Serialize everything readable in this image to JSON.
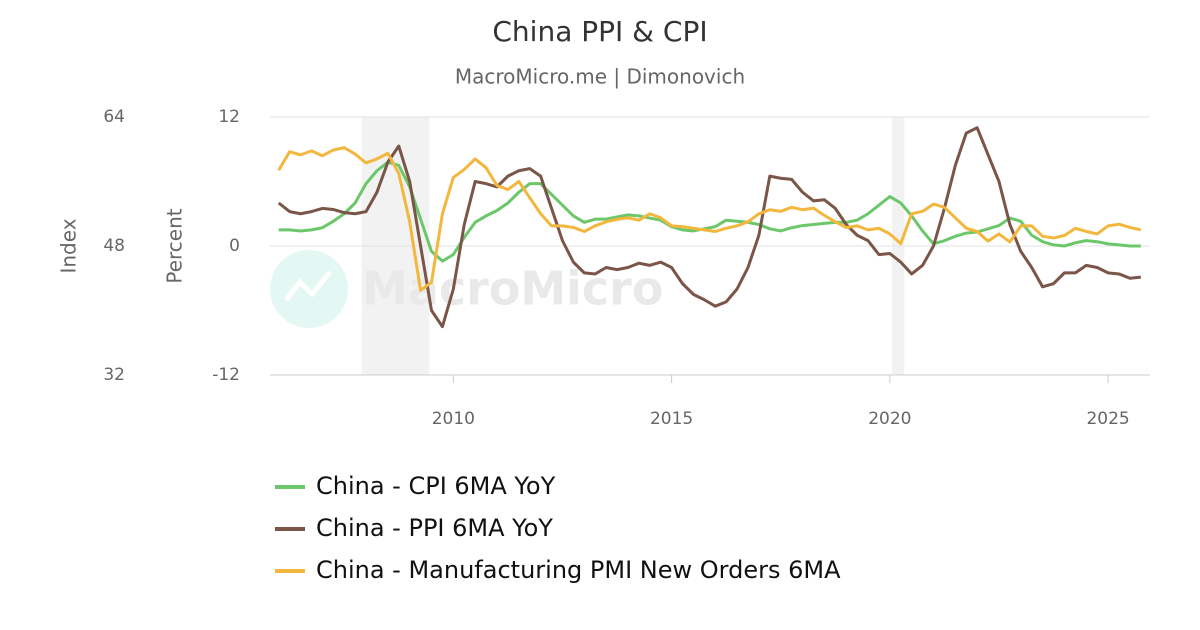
{
  "chart_data": {
    "type": "line",
    "title": "China PPI & CPI",
    "subtitle": "MacroMicro.me | Dimonovich",
    "watermark": "MacroMicro",
    "y_label": "Percent",
    "y2_label": "Index",
    "x": [
      2006,
      2006.25,
      2006.5,
      2006.75,
      2007,
      2007.25,
      2007.5,
      2007.75,
      2008,
      2008.25,
      2008.5,
      2008.75,
      2009,
      2009.25,
      2009.5,
      2009.75,
      2010,
      2010.25,
      2010.5,
      2010.75,
      2011,
      2011.25,
      2011.5,
      2011.75,
      2012,
      2012.25,
      2012.5,
      2012.75,
      2013,
      2013.25,
      2013.5,
      2013.75,
      2014,
      2014.25,
      2014.5,
      2014.75,
      2015,
      2015.25,
      2015.5,
      2015.75,
      2016,
      2016.25,
      2016.5,
      2016.75,
      2017,
      2017.25,
      2017.5,
      2017.75,
      2018,
      2018.25,
      2018.5,
      2018.75,
      2019,
      2019.25,
      2019.5,
      2019.75,
      2020,
      2020.25,
      2020.5,
      2020.75,
      2021,
      2021.25,
      2021.5,
      2021.75,
      2022,
      2022.25,
      2022.5,
      2022.75,
      2023,
      2023.25,
      2023.5,
      2023.75,
      2024,
      2024.25,
      2024.5,
      2024.75,
      2025,
      2025.25,
      2025.5,
      2025.75
    ],
    "xlim": [
      2005.8,
      2025.96
    ],
    "xticks": [
      2010,
      2015,
      2020,
      2025
    ],
    "ylim": [
      -12,
      12
    ],
    "yticks": [
      -12,
      0,
      12
    ],
    "y2lim": [
      32,
      64
    ],
    "y2ticks": [
      32,
      48,
      64
    ],
    "grid": true,
    "shaded_ranges": [
      [
        2007.9,
        2009.45
      ],
      [
        2020.05,
        2020.33
      ]
    ],
    "series": [
      {
        "name": "China - CPI 6MA YoY",
        "color": "#6cc76a",
        "values": [
          1.5,
          1.5,
          1.4,
          1.5,
          1.7,
          2.3,
          3.0,
          4.0,
          5.8,
          7.0,
          7.8,
          7.5,
          5.5,
          2.5,
          -0.5,
          -1.4,
          -0.8,
          0.8,
          2.2,
          2.8,
          3.3,
          4.0,
          5.0,
          5.8,
          5.8,
          4.8,
          3.8,
          2.8,
          2.2,
          2.5,
          2.5,
          2.7,
          2.9,
          2.8,
          2.6,
          2.4,
          1.8,
          1.5,
          1.4,
          1.6,
          1.8,
          2.4,
          2.3,
          2.2,
          2.0,
          1.6,
          1.4,
          1.7,
          1.9,
          2.0,
          2.1,
          2.2,
          2.2,
          2.4,
          3.0,
          3.8,
          4.6,
          4.0,
          2.8,
          1.4,
          0.2,
          0.5,
          0.9,
          1.2,
          1.3,
          1.6,
          1.9,
          2.6,
          2.3,
          1.0,
          0.4,
          0.1,
          0.0,
          0.3,
          0.5,
          0.4,
          0.2,
          0.1,
          0.0,
          0.0
        ]
      },
      {
        "name": "China - PPI 6MA YoY",
        "color": "#7a5548",
        "values": [
          4.0,
          3.2,
          3.0,
          3.2,
          3.5,
          3.4,
          3.1,
          3.0,
          3.2,
          5.0,
          7.8,
          9.3,
          6.0,
          0.0,
          -6.0,
          -7.5,
          -4.0,
          2.0,
          6.0,
          5.8,
          5.5,
          6.5,
          7.0,
          7.2,
          6.5,
          3.5,
          0.5,
          -1.5,
          -2.5,
          -2.6,
          -2.0,
          -2.2,
          -2.0,
          -1.6,
          -1.8,
          -1.5,
          -2.0,
          -3.5,
          -4.5,
          -5.0,
          -5.6,
          -5.2,
          -4.0,
          -2.0,
          1.0,
          6.5,
          6.3,
          6.2,
          5.0,
          4.2,
          4.3,
          3.5,
          2.0,
          1.0,
          0.5,
          -0.8,
          -0.7,
          -1.5,
          -2.6,
          -1.8,
          0.0,
          3.5,
          7.5,
          10.5,
          11.0,
          8.5,
          6.0,
          2.0,
          -0.5,
          -2.0,
          -3.8,
          -3.5,
          -2.5,
          -2.5,
          -1.8,
          -2.0,
          -2.5,
          -2.6,
          -3.0,
          -2.9
        ]
      },
      {
        "name": "China - Manufacturing PMI New Orders 6MA",
        "color": "#f3b73d",
        "axis": "y2",
        "values": [
          57.4,
          59.7,
          59.3,
          59.8,
          59.2,
          59.9,
          60.2,
          59.4,
          58.3,
          58.8,
          59.5,
          57,
          51,
          42.5,
          43.5,
          52,
          56.5,
          57.5,
          58.8,
          57.7,
          55.5,
          55,
          56,
          54,
          52,
          50.5,
          50.5,
          50.3,
          49.8,
          50.5,
          51,
          51.3,
          51.5,
          51.2,
          52,
          51.5,
          50.5,
          50.4,
          50.2,
          50,
          49.8,
          50.2,
          50.5,
          51,
          52,
          52.5,
          52.3,
          52.8,
          52.5,
          52.7,
          51.8,
          51,
          50.3,
          50.5,
          50,
          50.2,
          49.5,
          48.3,
          52,
          52.3,
          53.2,
          52.8,
          51.5,
          50.2,
          49.8,
          48.6,
          49.5,
          48.5,
          50.5,
          50.5,
          49.2,
          49,
          49.3,
          50.2,
          49.8,
          49.5,
          50.5,
          50.7,
          50.3,
          50
        ]
      }
    ]
  }
}
